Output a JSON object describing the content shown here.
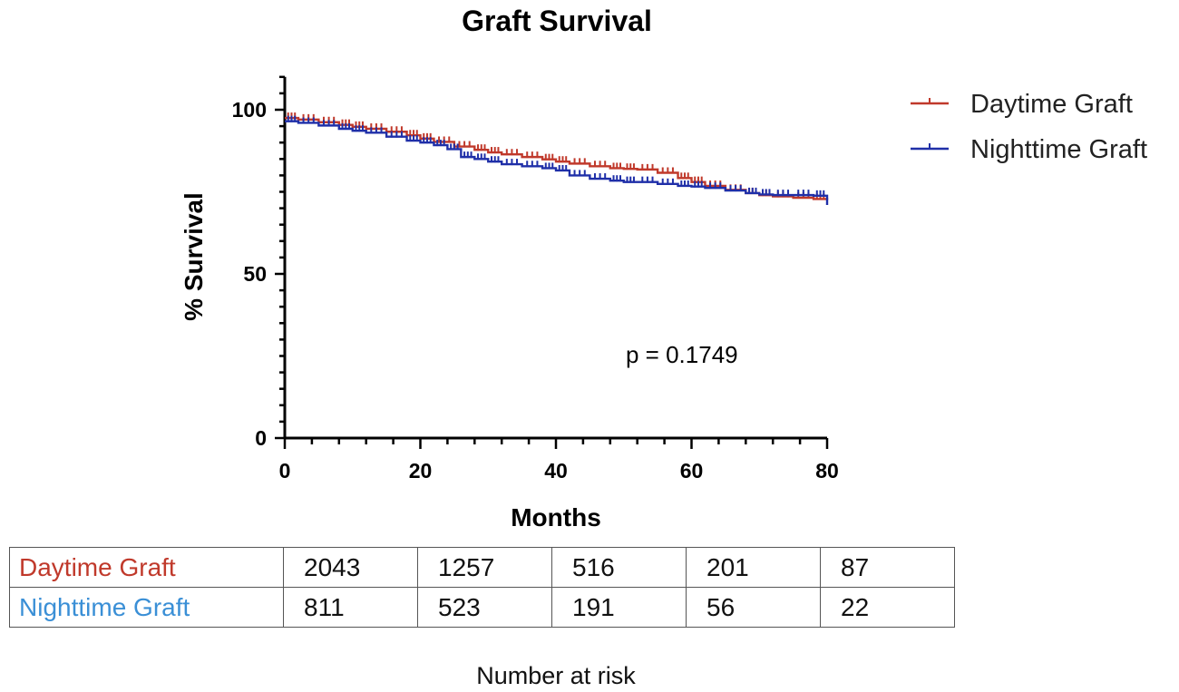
{
  "chart_data": {
    "type": "line",
    "title": "Graft Survival",
    "xlabel": "Months",
    "ylabel": "% Survival",
    "xlim": [
      0,
      80
    ],
    "ylim": [
      0,
      110
    ],
    "x_ticks": [
      0,
      20,
      40,
      60,
      80
    ],
    "y_ticks": [
      0,
      50,
      100
    ],
    "legend_position": "top-right",
    "annotation": "p = 0.1749",
    "series": [
      {
        "name": "Daytime Graft",
        "color": "#c0392b",
        "x": [
          0,
          2,
          5,
          8,
          10,
          12,
          15,
          18,
          20,
          22,
          25,
          28,
          30,
          32,
          35,
          38,
          40,
          42,
          45,
          48,
          50,
          52,
          55,
          58,
          60,
          62,
          65,
          68,
          70,
          72,
          75,
          78,
          80
        ],
        "y": [
          97.5,
          97,
          96.2,
          95.4,
          94.8,
          94.2,
          93.3,
          92.2,
          91.2,
          90.2,
          88.8,
          87.8,
          87,
          86.4,
          85.6,
          84.9,
          84.2,
          83.6,
          82.8,
          82.2,
          82,
          81.8,
          80.8,
          79.2,
          78,
          76.8,
          75.6,
          74.6,
          74,
          73.6,
          73.2,
          72.8,
          72.5
        ]
      },
      {
        "name": "Nighttime Graft",
        "color": "#1f2fa8",
        "x": [
          0,
          2,
          5,
          8,
          10,
          12,
          15,
          18,
          20,
          22,
          24,
          26,
          28,
          30,
          32,
          35,
          38,
          40,
          42,
          45,
          48,
          50,
          52,
          55,
          58,
          60,
          62,
          65,
          68,
          70,
          72,
          75,
          78,
          80
        ],
        "y": [
          96.5,
          96,
          95.2,
          94.2,
          93.6,
          93,
          91.8,
          90.6,
          90,
          89.2,
          88,
          85.6,
          85,
          84.2,
          83.4,
          82.8,
          82.2,
          81.5,
          80,
          79,
          78.4,
          78,
          78,
          77.4,
          76.8,
          76.6,
          76.2,
          75.4,
          74.6,
          74.2,
          74,
          74,
          73.8,
          71
        ]
      }
    ]
  },
  "risk_table": {
    "footer": "Number at risk",
    "rows": [
      {
        "label": "Daytime Graft",
        "color": "#c0392b",
        "values": [
          "2043",
          "1257",
          "516",
          "201",
          "87"
        ]
      },
      {
        "label": "Nighttime Graft",
        "color": "#3a8fd6",
        "values": [
          "811",
          "523",
          "191",
          "56",
          "22"
        ]
      }
    ]
  }
}
